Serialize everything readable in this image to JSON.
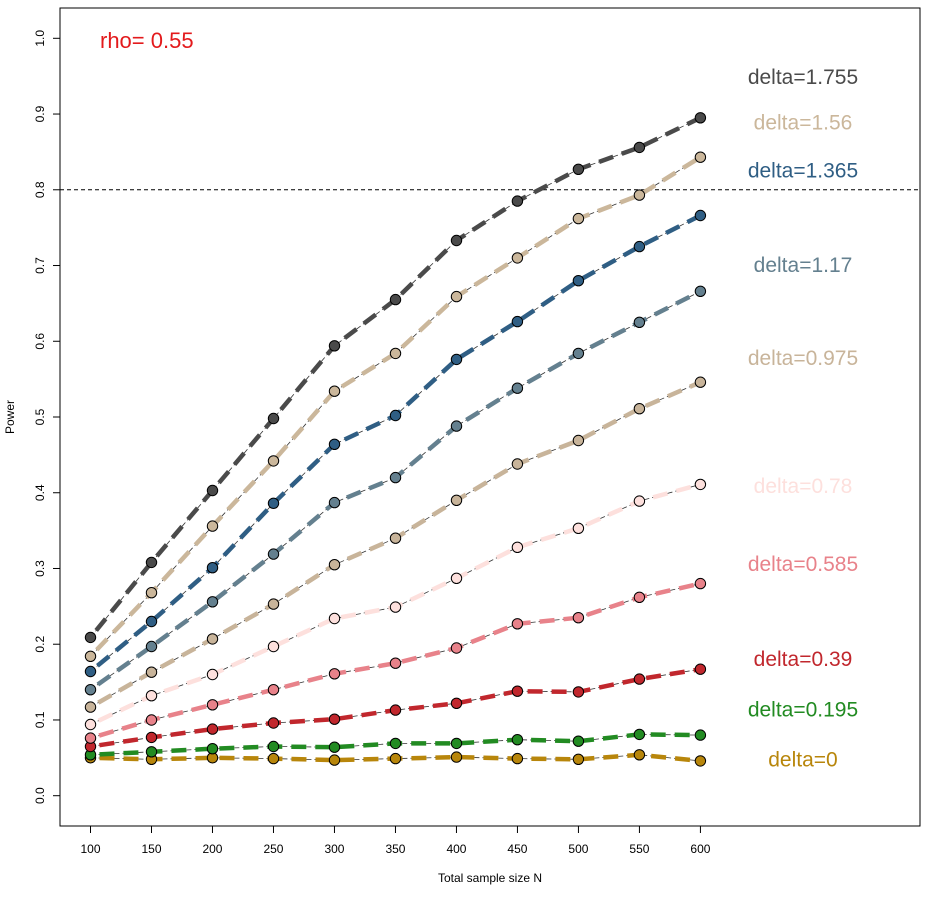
{
  "chart_data": {
    "type": "line",
    "title": "",
    "annotation": {
      "text": "rho= 0.55",
      "color": "#e31a1c"
    },
    "xlabel": "Total sample size N",
    "ylabel": "Power",
    "x": [
      100,
      150,
      200,
      250,
      300,
      350,
      400,
      450,
      500,
      550,
      600
    ],
    "x_ticks": [
      "100",
      "150",
      "200",
      "250",
      "300",
      "350",
      "400",
      "450",
      "500",
      "550",
      "600"
    ],
    "y_ticks": [
      "0.0",
      "0.1",
      "0.2",
      "0.3",
      "0.4",
      "0.5",
      "0.6",
      "0.7",
      "0.8",
      "0.9",
      "1.0"
    ],
    "xlim": [
      75,
      780
    ],
    "ylim": [
      -0.04,
      1.04
    ],
    "reference_line": {
      "y": 0.8,
      "style": "dashed"
    },
    "grid": false,
    "legend_placement": "right, series labels beside lines",
    "series": [
      {
        "name": "delta=0",
        "color": "#b8860b",
        "label_y": 0.047,
        "values": [
          0.05,
          0.048,
          0.05,
          0.049,
          0.047,
          0.049,
          0.051,
          0.049,
          0.048,
          0.054,
          0.046
        ]
      },
      {
        "name": "delta=0.195",
        "color": "#228b22",
        "label_y": 0.113,
        "values": [
          0.054,
          0.058,
          0.062,
          0.065,
          0.064,
          0.069,
          0.069,
          0.074,
          0.072,
          0.081,
          0.08
        ]
      },
      {
        "name": "delta=0.39",
        "color": "#c1272d",
        "label_y": 0.18,
        "values": [
          0.065,
          0.077,
          0.088,
          0.096,
          0.101,
          0.113,
          0.122,
          0.138,
          0.137,
          0.154,
          0.167
        ]
      },
      {
        "name": "delta=0.585",
        "color": "#e8828a",
        "label_y": 0.305,
        "values": [
          0.076,
          0.1,
          0.12,
          0.14,
          0.161,
          0.175,
          0.195,
          0.227,
          0.235,
          0.262,
          0.28
        ]
      },
      {
        "name": "delta=0.78",
        "color": "#fde0dd",
        "label_y": 0.408,
        "values": [
          0.094,
          0.132,
          0.16,
          0.197,
          0.234,
          0.249,
          0.287,
          0.328,
          0.353,
          0.389,
          0.411
        ]
      },
      {
        "name": "delta=0.975",
        "color": "#c8b49a",
        "label_y": 0.577,
        "values": [
          0.117,
          0.163,
          0.207,
          0.253,
          0.305,
          0.34,
          0.39,
          0.438,
          0.469,
          0.511,
          0.546
        ]
      },
      {
        "name": "delta=1.17",
        "color": "#64808f",
        "label_y": 0.7,
        "values": [
          0.14,
          0.197,
          0.256,
          0.319,
          0.387,
          0.42,
          0.488,
          0.538,
          0.584,
          0.625,
          0.666
        ]
      },
      {
        "name": "delta=1.365",
        "color": "#2f5e84",
        "label_y": 0.825,
        "values": [
          0.164,
          0.23,
          0.301,
          0.386,
          0.464,
          0.502,
          0.576,
          0.626,
          0.68,
          0.725,
          0.766
        ]
      },
      {
        "name": "delta=1.56",
        "color": "#cbb79b",
        "label_y": 0.888,
        "values": [
          0.184,
          0.268,
          0.356,
          0.442,
          0.534,
          0.584,
          0.659,
          0.71,
          0.762,
          0.793,
          0.843
        ]
      },
      {
        "name": "delta=1.755",
        "color": "#4a4a4a",
        "label_y": 0.948,
        "values": [
          0.209,
          0.308,
          0.403,
          0.498,
          0.594,
          0.655,
          0.733,
          0.785,
          0.827,
          0.856,
          0.895
        ]
      }
    ]
  }
}
